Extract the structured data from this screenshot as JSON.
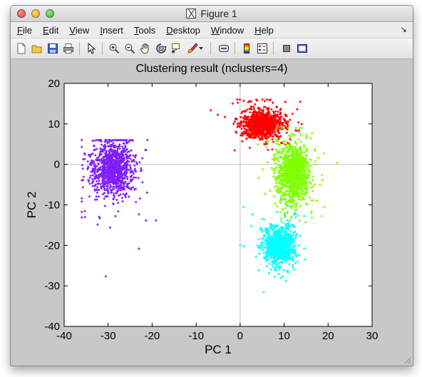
{
  "window": {
    "title": "Figure 1"
  },
  "menu": [
    {
      "first": "F",
      "rest": "ile"
    },
    {
      "first": "E",
      "rest": "dit"
    },
    {
      "first": "V",
      "rest": "iew"
    },
    {
      "first": "I",
      "rest": "nsert"
    },
    {
      "first": "T",
      "rest": "ools"
    },
    {
      "first": "D",
      "rest": "esktop"
    },
    {
      "first": "W",
      "rest": "indow"
    },
    {
      "first": "H",
      "rest": "elp"
    }
  ],
  "menu_arrow": "↘",
  "toolbar": {
    "icons": [
      "new-figure-icon",
      "open-file-icon",
      "save-icon",
      "print-icon",
      "select-arrow-icon",
      "zoom-in-icon",
      "zoom-out-icon",
      "pan-hand-icon",
      "rotate-3d-icon",
      "data-cursor-icon",
      "brush-icon",
      "brush-dropdown-icon",
      "link-plot-icon",
      "colorbar-icon",
      "legend-icon",
      "hide-plot-tools-icon",
      "show-plot-tools-icon"
    ]
  },
  "chart_data": {
    "type": "scatter",
    "title": "Clustering result (nclusters=4)",
    "xlabel": "PC 1",
    "ylabel": "PC 2",
    "xlim": [
      -40,
      30
    ],
    "ylim": [
      -40,
      20
    ],
    "xticks": [
      "-40",
      "-30",
      "-20",
      "-10",
      "0",
      "10",
      "20",
      "30"
    ],
    "yticks": [
      "20",
      "10",
      "0",
      "-10",
      "-20",
      "-30",
      "-40"
    ],
    "reference_lines": {
      "x": 0,
      "y": 0
    },
    "series": [
      {
        "color": "#7f1fff",
        "approx_center": [
          -29,
          -1
        ],
        "approx_spread": [
          4,
          6
        ],
        "approx_x_range": [
          -36,
          -16
        ],
        "approx_y_range": [
          -33,
          6
        ]
      },
      {
        "color": "#ff0000",
        "approx_center": [
          5,
          10
        ],
        "approx_spread": [
          4,
          3
        ],
        "approx_x_range": [
          -10,
          14
        ],
        "approx_y_range": [
          -6,
          16
        ]
      },
      {
        "color": "#80ff00",
        "approx_center": [
          12,
          -2
        ],
        "approx_spread": [
          3,
          6
        ],
        "approx_x_range": [
          4,
          23
        ],
        "approx_y_range": [
          -20,
          9
        ]
      },
      {
        "color": "#00ffff",
        "approx_center": [
          9,
          -20
        ],
        "approx_spread": [
          3,
          4
        ],
        "approx_x_range": [
          0,
          20
        ],
        "approx_y_range": [
          -32,
          -5
        ]
      }
    ]
  }
}
